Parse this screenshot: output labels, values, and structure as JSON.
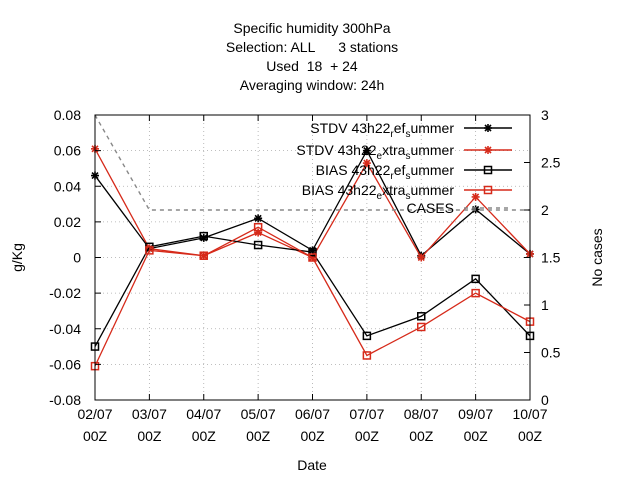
{
  "chart_data": {
    "type": "line",
    "title_lines": [
      "Specific humidity 300hPa",
      "Selection: ALL      3 stations",
      "Used  18  + 24",
      "Averaging window: 24h"
    ],
    "xlabel": "Date",
    "ylabel": "g/Kg",
    "y2label": "No cases",
    "categories": [
      [
        "02/07",
        "00Z"
      ],
      [
        "03/07",
        "00Z"
      ],
      [
        "04/07",
        "00Z"
      ],
      [
        "05/07",
        "00Z"
      ],
      [
        "06/07",
        "00Z"
      ],
      [
        "07/07",
        "00Z"
      ],
      [
        "08/07",
        "00Z"
      ],
      [
        "09/07",
        "00Z"
      ],
      [
        "10/07",
        "00Z"
      ]
    ],
    "ylim": [
      -0.08,
      0.08
    ],
    "yticks": [
      "-0.08",
      "-0.06",
      "-0.04",
      "-0.02",
      "0",
      "0.02",
      "0.04",
      "0.06",
      "0.08"
    ],
    "y2lim": [
      0,
      3
    ],
    "y2ticks": [
      "0",
      "0.5",
      "1",
      "1.5",
      "2",
      "2.5",
      "3"
    ],
    "legend_position": "top-right",
    "series": [
      {
        "name_parts": [
          [
            "STDV 43h22",
            0
          ],
          [
            "r",
            1
          ],
          [
            "ef",
            0
          ],
          [
            "s",
            1
          ],
          [
            "ummer",
            0
          ]
        ],
        "color": "#000000",
        "marker": "star",
        "axis": "y",
        "dash": "",
        "values": [
          0.046,
          0.005,
          0.011,
          0.022,
          0.004,
          0.06,
          0.001,
          0.027,
          0.002
        ]
      },
      {
        "name_parts": [
          [
            "STDV 43h22",
            0
          ],
          [
            "e",
            1
          ],
          [
            "xtra",
            0
          ],
          [
            "s",
            1
          ],
          [
            "ummer",
            0
          ]
        ],
        "color": "#d62a1a",
        "marker": "star",
        "axis": "y",
        "dash": "",
        "values": [
          0.061,
          0.005,
          0.001,
          0.014,
          0.0,
          0.053,
          0.0,
          0.034,
          0.002
        ]
      },
      {
        "name_parts": [
          [
            "BIAS 43h22",
            0
          ],
          [
            "r",
            1
          ],
          [
            "ef",
            0
          ],
          [
            "s",
            1
          ],
          [
            "ummer",
            0
          ]
        ],
        "color": "#000000",
        "marker": "square",
        "axis": "y",
        "dash": "",
        "values": [
          -0.05,
          0.006,
          0.012,
          0.007,
          0.003,
          -0.044,
          -0.033,
          -0.012,
          -0.044
        ]
      },
      {
        "name_parts": [
          [
            "BIAS 43h22",
            0
          ],
          [
            "e",
            1
          ],
          [
            "xtra",
            0
          ],
          [
            "s",
            1
          ],
          [
            "ummer",
            0
          ]
        ],
        "color": "#d62a1a",
        "marker": "square",
        "axis": "y",
        "dash": "",
        "values": [
          -0.061,
          0.004,
          0.001,
          0.017,
          0.0,
          -0.055,
          -0.039,
          -0.02,
          -0.036
        ]
      },
      {
        "name_parts": [
          [
            "CASES",
            0
          ]
        ],
        "color": "#888888",
        "marker": "none",
        "axis": "y2",
        "dash": "4,4",
        "values": [
          3,
          2,
          2,
          2,
          2,
          2,
          2,
          2,
          2
        ]
      }
    ]
  }
}
